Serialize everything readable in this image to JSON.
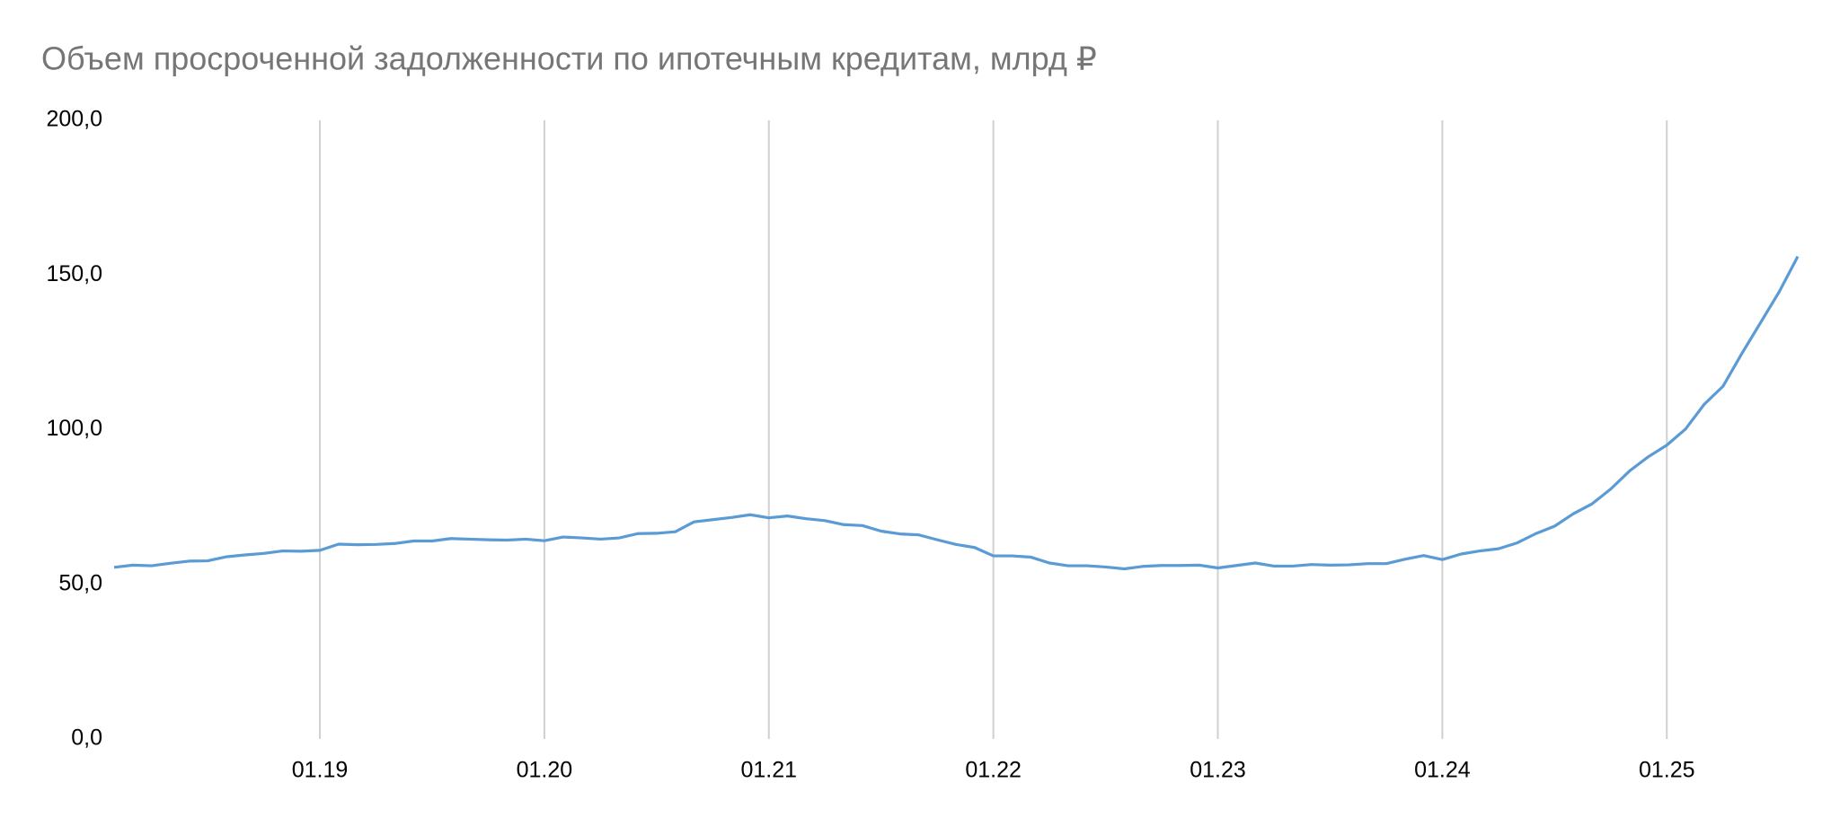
{
  "chart_data": {
    "type": "line",
    "title": "Объем просроченной задолженности по ипотечным кредитам, млрд ₽",
    "categories": [
      null,
      null,
      null,
      null,
      null,
      null,
      null,
      null,
      null,
      null,
      null,
      "01.19",
      null,
      null,
      null,
      null,
      null,
      null,
      null,
      null,
      null,
      null,
      null,
      "01.20",
      null,
      null,
      null,
      null,
      null,
      null,
      null,
      null,
      null,
      null,
      null,
      "01.21",
      null,
      null,
      null,
      null,
      null,
      null,
      null,
      null,
      null,
      null,
      null,
      "01.22",
      null,
      null,
      null,
      null,
      null,
      null,
      null,
      null,
      null,
      null,
      null,
      "01.23",
      null,
      null,
      null,
      null,
      null,
      null,
      null,
      null,
      null,
      null,
      null,
      "01.24",
      null,
      null,
      null,
      null,
      null,
      null,
      null,
      null,
      null,
      null,
      null,
      "01.25",
      null,
      null,
      null,
      null,
      null,
      null,
      null
    ],
    "values": [
      55.5,
      56.2,
      56,
      56.8,
      57.5,
      57.6,
      58.9,
      59.5,
      60,
      60.8,
      60.7,
      61,
      63,
      62.8,
      62.9,
      63.2,
      64,
      64,
      64.8,
      64.6,
      64.4,
      64.3,
      64.6,
      64.1,
      65.3,
      65,
      64.6,
      65,
      66.4,
      66.5,
      67,
      70.2,
      70.9,
      71.6,
      72.5,
      71.5,
      72.1,
      71.2,
      70.6,
      69.3,
      69,
      67.2,
      66.3,
      66,
      64.4,
      62.9,
      61.9,
      59.2,
      59.2,
      58.8,
      56.9,
      56,
      56,
      55.6,
      55,
      55.8,
      56.1,
      56.1,
      56.2,
      55.3,
      56.1,
      56.9,
      55.9,
      55.9,
      56.4,
      56.2,
      56.3,
      56.7,
      56.7,
      58.1,
      59.3,
      58,
      59.8,
      60.8,
      61.5,
      63.4,
      66.4,
      68.8,
      72.8,
      76,
      80.8,
      86.6,
      91.2,
      95,
      100.2,
      108.2,
      114,
      124.5,
      134.5,
      144.5,
      156
    ],
    "color": "#5b9bd5",
    "ylim": [
      0,
      200
    ],
    "yticks": [
      {
        "value": 0,
        "label": "0,0"
      },
      {
        "value": 50,
        "label": "50,0"
      },
      {
        "value": 100,
        "label": "100,0"
      },
      {
        "value": 150,
        "label": "150,0"
      },
      {
        "value": 200,
        "label": "200,0"
      }
    ],
    "grid": "x"
  }
}
